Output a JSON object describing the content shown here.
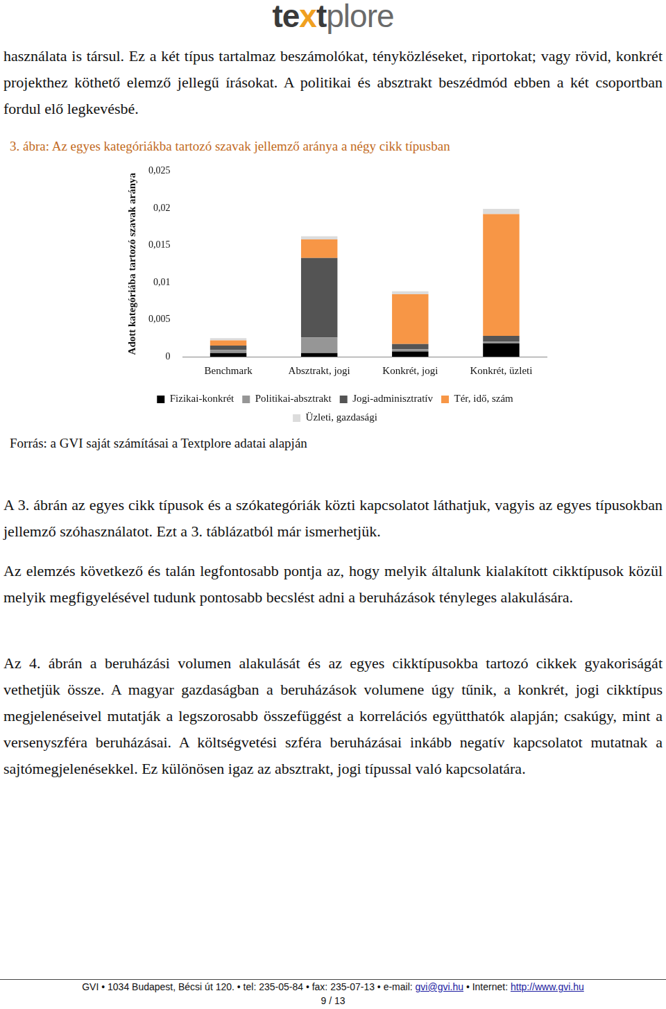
{
  "header": {
    "logo": "textplore"
  },
  "paragraphs_before": [
    "használata is társul. Ez a két típus tartalmaz beszámolókat, tényközléseket, riportokat; vagy rövid, konkrét projekthez köthető elemző jellegű írásokat. A politikai és absztrakt beszédmód ebben a két csoportban fordul elő legkevésbé."
  ],
  "figure_caption": "3. ábra: Az egyes kategóriákba tartozó szavak jellemző aránya a négy cikk típusban",
  "chart_data": {
    "type": "bar",
    "stacked": true,
    "grid": false,
    "legend": "bottom",
    "y_label": "Adott kategóriába tartozó szavak aránya",
    "categories": [
      "Benchmark",
      "Absztrakt, jogi",
      "Konkrét, jogi",
      "Konkrét, üzleti"
    ],
    "ylim": [
      0,
      0.025
    ],
    "yticks": [
      0,
      {
        "value": 0.005,
        "label": "0,005"
      },
      {
        "value": 0.01,
        "label": "0,01"
      },
      {
        "value": 0.015,
        "label": "0,015"
      },
      {
        "value": 0.02,
        "label": "0,02"
      },
      {
        "value": 0.025,
        "label": "0,025"
      }
    ],
    "series": [
      {
        "name": "Fizikai-konkrét",
        "color": "#000000",
        "values": [
          0.0005,
          0.0005,
          0.0007,
          0.0018
        ]
      },
      {
        "name": "Politikai-absztrakt",
        "color": "#969696",
        "values": [
          0.0004,
          0.0021,
          0.0003,
          0.0002
        ]
      },
      {
        "name": "Jogi-adminisztratív",
        "color": "#545454",
        "values": [
          0.0006,
          0.0107,
          0.0007,
          0.0008
        ]
      },
      {
        "name": "Tér, idő, szám",
        "color": "#f79646",
        "values": [
          0.0007,
          0.0025,
          0.0067,
          0.0164
        ]
      },
      {
        "name": "Üzleti, gazdasági",
        "color": "#dcdcdc",
        "values": [
          0.0003,
          0.0004,
          0.0004,
          0.0007
        ]
      }
    ]
  },
  "source": "Forrás: a GVI saját számításai a Textplore adatai alapján",
  "paragraphs_after": [
    "A 3. ábrán az egyes cikk típusok és a szókategóriák közti kapcsolatot láthatjuk, vagyis az egyes típusokban jellemző szóhasználatot. Ezt a 3. táblázatból már ismerhetjük.",
    "Az elemzés következő és talán legfontosabb pontja az, hogy melyik általunk kialakított cikktípusok közül melyik megfigyelésével tudunk pontosabb becslést adni a beruházások tényleges alakulására.",
    "Az 4. ábrán a beruházási volumen alakulását és az egyes cikktípusokba tartozó cikkek gyakoriságát vethetjük össze. A magyar gazdaságban a beruházások volumene úgy tűnik, a konkrét, jogi cikktípus megjelenéseivel mutatják a legszorosabb összefüggést a korrelációs együtthatók alapján; csakúgy, mint a versenyszféra beruházásai. A költségvetési szféra beruházásai inkább negatív kapcsolatot mutatnak a sajtómegjelenésekkel. Ez különösen igaz az absztrakt, jogi típussal való kapcsolatára."
  ],
  "footer": {
    "contact": "GVI • 1034 Budapest, Bécsi út 120. • tel: 235-05-84 • fax: 235-07-13 • e-mail: ",
    "email": "gvi@gvi.hu",
    "internet": " • Internet: ",
    "url": "http://www.gvi.hu",
    "page": "9 / 13"
  }
}
